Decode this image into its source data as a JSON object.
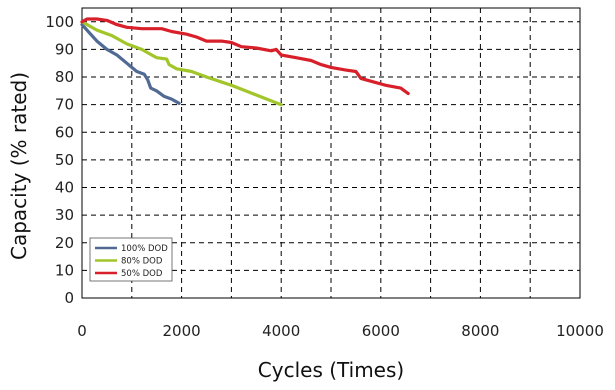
{
  "chart_data": {
    "type": "line",
    "title": "",
    "xlabel": "Cycles (Times)",
    "ylabel": "Capacity (% rated)",
    "xlim": [
      0,
      10000
    ],
    "ylim": [
      0,
      105
    ],
    "x_ticks": [
      0,
      2000,
      4000,
      6000,
      8000,
      10000
    ],
    "y_ticks": [
      0,
      10,
      20,
      30,
      40,
      50,
      60,
      70,
      80,
      90,
      100
    ],
    "grid": true,
    "grid_style": "dashed",
    "legend_position": "bottom-left",
    "series": [
      {
        "name": "100% DOD",
        "color": "#506a94",
        "points": [
          [
            0,
            99
          ],
          [
            150,
            96
          ],
          [
            300,
            93
          ],
          [
            500,
            90
          ],
          [
            700,
            88
          ],
          [
            900,
            85
          ],
          [
            1100,
            82
          ],
          [
            1250,
            81
          ],
          [
            1320,
            79
          ],
          [
            1380,
            76
          ],
          [
            1500,
            75
          ],
          [
            1650,
            73
          ],
          [
            1800,
            72
          ],
          [
            1950,
            70.5
          ]
        ]
      },
      {
        "name": "80% DOD",
        "color": "#a2c62a",
        "points": [
          [
            0,
            100
          ],
          [
            300,
            97
          ],
          [
            600,
            95
          ],
          [
            900,
            92
          ],
          [
            1200,
            90
          ],
          [
            1400,
            88
          ],
          [
            1500,
            87
          ],
          [
            1700,
            86.5
          ],
          [
            1750,
            84.5
          ],
          [
            1900,
            83
          ],
          [
            2200,
            82
          ],
          [
            2500,
            80
          ],
          [
            3000,
            77
          ],
          [
            3500,
            73.5
          ],
          [
            4000,
            70
          ]
        ]
      },
      {
        "name": "50% DOD",
        "color": "#d8202a",
        "points": [
          [
            0,
            100
          ],
          [
            100,
            101
          ],
          [
            300,
            101
          ],
          [
            500,
            100.5
          ],
          [
            700,
            99
          ],
          [
            900,
            98
          ],
          [
            1200,
            97.5
          ],
          [
            1600,
            97.5
          ],
          [
            1800,
            96.5
          ],
          [
            2100,
            95.5
          ],
          [
            2300,
            94.5
          ],
          [
            2500,
            93
          ],
          [
            2800,
            93
          ],
          [
            3000,
            92.5
          ],
          [
            3200,
            91
          ],
          [
            3500,
            90.5
          ],
          [
            3800,
            89.5
          ],
          [
            3900,
            90
          ],
          [
            4000,
            88
          ],
          [
            4300,
            87
          ],
          [
            4600,
            86
          ],
          [
            4800,
            84.5
          ],
          [
            5000,
            83.5
          ],
          [
            5300,
            82.5
          ],
          [
            5500,
            82
          ],
          [
            5600,
            79.5
          ],
          [
            5900,
            78
          ],
          [
            6100,
            77
          ],
          [
            6400,
            76
          ],
          [
            6550,
            74
          ]
        ]
      }
    ]
  }
}
